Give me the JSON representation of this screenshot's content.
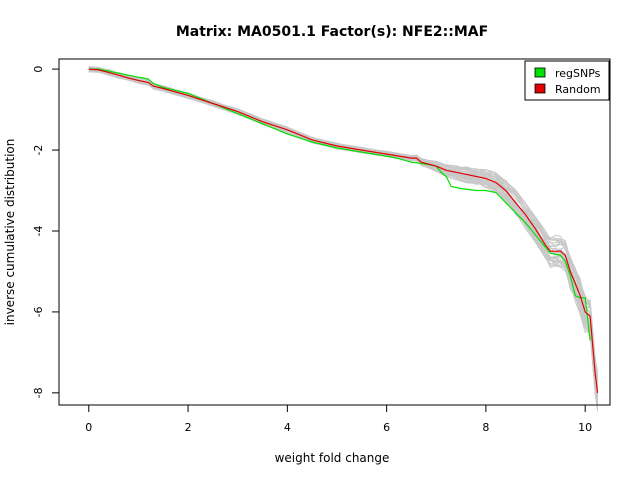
{
  "chart_data": {
    "type": "line",
    "title": "Matrix: MA0501.1 Factor(s): NFE2::MAF",
    "xlabel": "weight fold change",
    "ylabel": "inverse cumulative distribution",
    "xlim": [
      -0.6,
      10.5
    ],
    "ylim": [
      -8.3,
      0.25
    ],
    "xticks": [
      0,
      2,
      4,
      6,
      8,
      10
    ],
    "yticks": [
      0,
      -2,
      -4,
      -6,
      -8
    ],
    "grid": false,
    "legend": {
      "position": "top-right",
      "entries": [
        "regSNPs",
        "Random"
      ]
    },
    "colors": {
      "regSNPs": "#00e000",
      "Random": "#e00000",
      "background_samples": "#c8c8c8"
    },
    "series": [
      {
        "name": "regSNPs",
        "color": "#00e000",
        "x": [
          0.0,
          0.2,
          0.4,
          0.6,
          0.8,
          1.0,
          1.1,
          1.2,
          1.3,
          1.5,
          2.0,
          2.5,
          3.0,
          3.5,
          4.0,
          4.5,
          5.0,
          5.5,
          6.0,
          6.2,
          6.5,
          6.8,
          7.0,
          7.1,
          7.2,
          7.3,
          7.5,
          7.8,
          8.0,
          8.2,
          8.4,
          8.6,
          8.8,
          9.0,
          9.2,
          9.3,
          9.5,
          9.6,
          9.7,
          9.8,
          9.9,
          10.0,
          10.1
        ],
        "y": [
          0.0,
          0.0,
          -0.05,
          -0.1,
          -0.15,
          -0.2,
          -0.22,
          -0.25,
          -0.35,
          -0.45,
          -0.6,
          -0.85,
          -1.1,
          -1.35,
          -1.6,
          -1.8,
          -1.95,
          -2.05,
          -2.15,
          -2.2,
          -2.3,
          -2.35,
          -2.4,
          -2.55,
          -2.65,
          -2.9,
          -2.95,
          -3.0,
          -3.0,
          -3.05,
          -3.3,
          -3.55,
          -3.8,
          -4.1,
          -4.4,
          -4.55,
          -4.6,
          -4.75,
          -5.1,
          -5.6,
          -5.65,
          -5.65,
          -6.7
        ]
      },
      {
        "name": "Random",
        "color": "#e00000",
        "x": [
          0.0,
          0.2,
          0.4,
          0.6,
          0.8,
          1.0,
          1.2,
          1.3,
          1.5,
          2.0,
          2.5,
          3.0,
          3.5,
          4.0,
          4.5,
          5.0,
          5.5,
          6.0,
          6.5,
          6.6,
          6.7,
          7.0,
          7.2,
          7.4,
          7.6,
          7.8,
          8.0,
          8.2,
          8.4,
          8.6,
          8.8,
          9.0,
          9.2,
          9.3,
          9.4,
          9.5,
          9.6,
          9.7,
          9.8,
          9.9,
          10.0,
          10.1,
          10.2,
          10.25
        ],
        "y": [
          0.0,
          -0.02,
          -0.08,
          -0.15,
          -0.22,
          -0.28,
          -0.33,
          -0.42,
          -0.48,
          -0.65,
          -0.85,
          -1.05,
          -1.3,
          -1.5,
          -1.75,
          -1.9,
          -2.0,
          -2.1,
          -2.2,
          -2.2,
          -2.3,
          -2.4,
          -2.5,
          -2.55,
          -2.6,
          -2.65,
          -2.7,
          -2.8,
          -3.0,
          -3.3,
          -3.6,
          -3.95,
          -4.35,
          -4.5,
          -4.5,
          -4.5,
          -4.6,
          -5.0,
          -5.3,
          -5.6,
          -6.0,
          -6.1,
          -7.5,
          -8.0
        ]
      }
    ]
  }
}
